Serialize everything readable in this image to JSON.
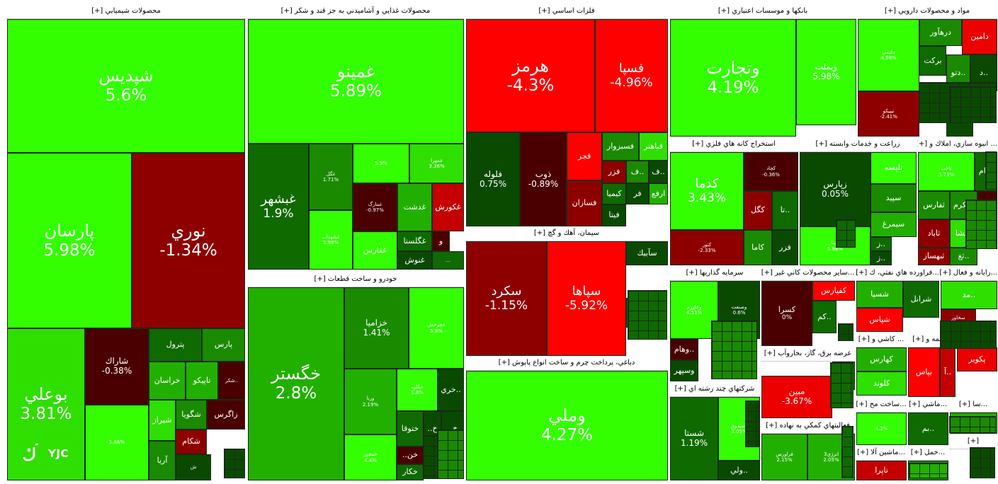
{
  "app": {
    "logo_text": "YJC",
    "background": "#ffffff"
  },
  "colors": {
    "g5": "#33ff00",
    "g4": "#2fdf00",
    "g3": "#22b000",
    "g2": "#1a8a00",
    "g1": "#0f6a00",
    "g0": "#0a4a00",
    "r5": "#ff0000",
    "r4": "#ec0000",
    "r3": "#c40000",
    "r2": "#8e0000",
    "r1": "#4a0000"
  },
  "sectors": [
    {
      "id": "chem",
      "label": "محصولات شيميايي [+]",
      "tiles": [
        {
          "n": "شپديس",
          "c": "5.6%",
          "col": "g5"
        },
        {
          "n": "پارسان",
          "c": "5.98%",
          "col": "g5"
        },
        {
          "n": "نوري",
          "c": "-1.34%",
          "col": "r2"
        },
        {
          "n": "بوعلي",
          "c": "3.81%",
          "col": "g4"
        },
        {
          "n": "شاراك",
          "c": "-0.38%",
          "col": "r1"
        },
        {
          "n": "",
          "c": "5.66%",
          "col": "g5"
        },
        {
          "n": "پترول",
          "c": "",
          "col": "g1"
        },
        {
          "n": "پارس",
          "c": "",
          "col": "g2"
        },
        {
          "n": "خراسان",
          "c": "",
          "col": "g3"
        },
        {
          "n": "تاپيكو",
          "c": "",
          "col": "g3"
        },
        {
          "n": "..شكر",
          "c": "",
          "col": "r1"
        },
        {
          "n": "شگويا",
          "c": "",
          "col": "g2"
        },
        {
          "n": "زاگرس",
          "c": "",
          "col": "r1"
        },
        {
          "n": "شيراز",
          "c": "",
          "col": "g4"
        },
        {
          "n": "شكام",
          "c": "",
          "col": "r2"
        },
        {
          "n": "آريا",
          "c": "",
          "col": "g2"
        },
        {
          "n": "ش",
          "c": "",
          "col": "g0"
        }
      ]
    },
    {
      "id": "food",
      "label": "محصولات غذايي و آشاميدني به جز قند و شكر [+]",
      "tiles": [
        {
          "n": "غمينو",
          "c": "5.89%",
          "col": "g5"
        },
        {
          "n": "غبشهر",
          "c": "1.9%",
          "col": "g1"
        },
        {
          "n": "غگل",
          "c": "1.71%",
          "col": "g2"
        },
        {
          "n": "",
          "c": "5.9%",
          "col": "g5"
        },
        {
          "n": "غمهرا",
          "c": "3.36%",
          "col": "g4"
        },
        {
          "n": "غشهداب",
          "c": "5.98%",
          "col": "g5"
        },
        {
          "n": "غمارگ",
          "c": "-0.97%",
          "col": "r1"
        },
        {
          "n": "غدشت",
          "c": "",
          "col": "g3"
        },
        {
          "n": "غكورش",
          "c": "",
          "col": "r3"
        },
        {
          "n": "غفارس",
          "c": "",
          "col": "g5"
        },
        {
          "n": "غگلستا",
          "c": "",
          "col": "g1"
        },
        {
          "n": "غنوش",
          "c": "",
          "col": "g0"
        },
        {
          "n": "و",
          "c": "",
          "col": "r1"
        },
        {
          "n": "...",
          "c": "",
          "col": "g1"
        }
      ]
    },
    {
      "id": "metal",
      "label": "فلزات اساسي [+]",
      "tiles": [
        {
          "n": "هرمز",
          "c": "-4.3%",
          "col": "r5"
        },
        {
          "n": "فسپا",
          "c": "-4.96%",
          "col": "r5"
        },
        {
          "n": "فلوله",
          "c": "0.75%",
          "col": "g0"
        },
        {
          "n": "ذوب",
          "c": "-0.89%",
          "col": "r1"
        },
        {
          "n": "فجر",
          "c": "",
          "col": "r5"
        },
        {
          "n": "فسازان",
          "c": "",
          "col": "r2"
        },
        {
          "n": "فسبزوار",
          "c": "",
          "col": "g2"
        },
        {
          "n": "فباهنر",
          "c": "",
          "col": "g4"
        },
        {
          "n": "فزر",
          "c": "",
          "col": "r2"
        },
        {
          "n": "..ف",
          "c": "",
          "col": "g2"
        },
        {
          "n": "..ف",
          "c": "",
          "col": "g0"
        },
        {
          "n": "كيميا",
          "c": "",
          "col": "g1"
        },
        {
          "n": "فر",
          "c": "",
          "col": "g0"
        },
        {
          "n": "ارفع",
          "c": "",
          "col": "g3"
        },
        {
          "n": "فيتا",
          "c": "",
          "col": "g0"
        }
      ]
    },
    {
      "id": "bank",
      "label": "بانكها و موسسات اعتباري [+]",
      "tiles": [
        {
          "n": "وتجارت",
          "c": "4.19%",
          "col": "g5"
        },
        {
          "n": "وبملت",
          "c": "5.98%",
          "col": "g5"
        }
      ]
    },
    {
      "id": "pharma",
      "label": "مواد و محصولات دارويي [+]",
      "tiles": [
        {
          "n": "دكيمي",
          "c": "4.59%",
          "col": "g5"
        },
        {
          "n": "درهآور",
          "c": "",
          "col": "g2"
        },
        {
          "n": "دامين",
          "c": "",
          "col": "r4"
        },
        {
          "n": "بركت",
          "c": "",
          "col": "g1"
        },
        {
          "n": "..دتو",
          "c": "",
          "col": "g2"
        },
        {
          "n": "..د",
          "c": "",
          "col": "g0"
        },
        {
          "n": "تيپيكو",
          "c": "-2.41%",
          "col": "r2"
        },
        {
          "n": "دلر",
          "c": "",
          "col": "g1"
        },
        {
          "n": "..دد",
          "c": "",
          "col": "g0"
        }
      ]
    },
    {
      "id": "cement",
      "label": "سيمان، آهك و گچ [+]",
      "tiles": [
        {
          "n": "سكرد",
          "c": "-1.15%",
          "col": "r2"
        },
        {
          "n": "سپاها",
          "c": "-5.92%",
          "col": "r5"
        },
        {
          "n": "سآبيك",
          "c": "",
          "col": "g0"
        },
        {
          "n": "..س",
          "c": "",
          "col": "g1"
        }
      ]
    },
    {
      "id": "leather",
      "label": "دباغي، پرداخت چرم و ساخت انواع پاپوش [+]",
      "tiles": [
        {
          "n": "وملي",
          "c": "4.27%",
          "col": "g5"
        }
      ]
    },
    {
      "id": "auto",
      "label": "خودرو و ساخت قطعات [+]",
      "tiles": [
        {
          "n": "خگستر",
          "c": "2.8%",
          "col": "g3"
        },
        {
          "n": "خزاميا",
          "c": "1.41%",
          "col": "g2"
        },
        {
          "n": "خچرخش",
          "c": "5.9%",
          "col": "g5"
        },
        {
          "n": "ورنا",
          "c": "2.19%",
          "col": "g3"
        },
        {
          "n": "خكاوه",
          "c": "5.8%",
          "col": "g5"
        },
        {
          "n": "..خري",
          "c": "",
          "col": "g0"
        },
        {
          "n": "ختوقا",
          "c": "",
          "col": "g1"
        },
        {
          "n": "خ..",
          "c": "",
          "col": "g0"
        },
        {
          "n": "خ..",
          "c": "",
          "col": "g0"
        },
        {
          "n": "خمحور",
          "c": "4.4%",
          "col": "g5"
        },
        {
          "n": "خن..",
          "c": "",
          "col": "r1"
        },
        {
          "n": "خ..",
          "c": "",
          "col": "r2"
        },
        {
          "n": "خكار",
          "c": "",
          "col": "g1"
        }
      ]
    },
    {
      "id": "mining",
      "label": "استخراج كانه هاي فلزي [+]",
      "tiles": [
        {
          "n": "كدما",
          "c": "3.43%",
          "col": "g5"
        },
        {
          "n": "كچاد",
          "c": "-0.36%",
          "col": "r1"
        },
        {
          "n": "كگل",
          "c": "",
          "col": "r2"
        },
        {
          "n": "..تا",
          "c": "",
          "col": "g1"
        },
        {
          "n": "كاما",
          "c": "",
          "col": "g2"
        },
        {
          "n": "فزر",
          "c": "",
          "col": "g0"
        },
        {
          "n": "كنور",
          "c": "-2.33%",
          "col": "r2"
        }
      ]
    },
    {
      "id": "agri",
      "label": "زراعت و خدمات وابسته [+]",
      "tiles": [
        {
          "n": "زپارس",
          "c": "0.05%",
          "col": "g0"
        },
        {
          "n": "تليسه",
          "c": "",
          "col": "g5"
        },
        {
          "n": "سپيد",
          "c": "",
          "col": "g2"
        },
        {
          "n": "سيمرغ",
          "c": "",
          "col": "g3"
        },
        {
          "n": "..ز",
          "c": "",
          "col": "g1"
        },
        {
          "n": "..ز",
          "c": "",
          "col": "g0"
        },
        {
          "n": "زبينا",
          "c": "5.98%",
          "col": "g5"
        }
      ]
    },
    {
      "id": "realestate",
      "label": "... انبوه سازي، املاك و [+]",
      "tiles": [
        {
          "n": "ثاخت",
          "c": "3.73%",
          "col": "g5"
        },
        {
          "n": "..ثام",
          "c": "",
          "col": "g1"
        },
        {
          "n": "ثفارس",
          "c": "",
          "col": "g2"
        },
        {
          "n": "..ثكرم",
          "c": "",
          "col": "g2"
        },
        {
          "n": "..و",
          "c": "",
          "col": "r1"
        },
        {
          "n": "..ثشا",
          "c": "",
          "col": "g4"
        },
        {
          "n": "ثباغ",
          "c": "",
          "col": "g1"
        },
        {
          "n": "ثاباد",
          "c": "",
          "col": "r2"
        },
        {
          "n": "..ثغ",
          "c": "",
          "col": "g2"
        },
        {
          "n": "ثبهساز",
          "c": "",
          "col": "r2"
        }
      ]
    },
    {
      "id": "invest",
      "label": "سرمايه گذاريها [+]",
      "tiles": [
        {
          "n": "وخارزم",
          "c": "4.51%",
          "col": "g5"
        },
        {
          "n": "وصنعت",
          "c": "0.6%",
          "col": "g0"
        },
        {
          "n": "..وهام",
          "c": "",
          "col": "r1"
        },
        {
          "n": "وسپهر",
          "c": "",
          "col": "g0"
        }
      ]
    },
    {
      "id": "nonmetal",
      "label": "...ساير محصولات كاني غير [+]",
      "tiles": [
        {
          "n": "كسرا",
          "c": "0%",
          "col": "r1"
        },
        {
          "n": "كفپارس",
          "c": "",
          "col": "r5"
        },
        {
          "n": "..كم",
          "c": "",
          "col": "g1"
        }
      ]
    },
    {
      "id": "oil",
      "label": "...فراورده هاي نفتي، ك [+]",
      "tiles": [
        {
          "n": "شسپا",
          "c": "",
          "col": "g3"
        },
        {
          "n": "شرانل",
          "c": "",
          "col": "g1"
        },
        {
          "n": "شپاس",
          "c": "",
          "col": "r5"
        }
      ]
    },
    {
      "id": "computer",
      "label": "...رايانه و فعال [+]",
      "tiles": [
        {
          "n": "..مد",
          "c": "",
          "col": "g4"
        },
        {
          "n": "سخاور",
          "c": "-2.73%",
          "col": "r2"
        }
      ]
    },
    {
      "id": "power",
      "label": "عرضه برق، گاز، بخاروآب [+]",
      "tiles": [
        {
          "n": "مبين",
          "c": "-3.67%",
          "col": "r4"
        },
        {
          "n": "..بپ",
          "c": "",
          "col": "g2"
        }
      ]
    },
    {
      "id": "tile",
      "label": "... كاشي و [+]",
      "tiles": [
        {
          "n": "كهارس",
          "c": "",
          "col": "g3"
        },
        {
          "n": "كلوند",
          "c": "",
          "col": "g4"
        }
      ]
    },
    {
      "id": "insurance",
      "label": "...بيمه و [+]",
      "tiles": [
        {
          "n": "بپاس",
          "c": "",
          "col": "r5"
        },
        {
          "n": "..آ",
          "c": "",
          "col": "r3"
        }
      ]
    },
    {
      "id": "rubber",
      "label": "...لاستيكي [+]",
      "tiles": [
        {
          "n": "پكوير",
          "c": "",
          "col": "r4"
        }
      ]
    },
    {
      "id": "multi",
      "label": "شركتهاي چند رشته اي [+]",
      "tiles": [
        {
          "n": "شستا",
          "c": "1.19%",
          "col": "g1"
        },
        {
          "n": "وصندوق",
          "c": "3.05%",
          "col": "g5"
        },
        {
          "n": "..ولي",
          "c": "",
          "col": "g0"
        }
      ]
    },
    {
      "id": "aux",
      "label": "فعاليتهاي كمكي به نهاده [+]",
      "tiles": [
        {
          "n": "فراورس",
          "c": "2.15%",
          "col": "g3"
        },
        {
          "n": "انرژي3",
          "c": "2.05%",
          "col": "g3"
        }
      ]
    },
    {
      "id": "other1",
      "label": "...ساخت مح [+]",
      "tiles": [
        {
          "n": "",
          "c": "4.2%",
          "col": "g5"
        }
      ]
    },
    {
      "id": "other2",
      "label": "...ماشي [+]",
      "tiles": [
        {
          "n": "..بم",
          "c": "",
          "col": "g1"
        }
      ]
    },
    {
      "id": "other3",
      "label": "...سا [+]",
      "tiles": [
        {
          "n": "",
          "c": "",
          "col": "g3"
        }
      ]
    },
    {
      "id": "machine",
      "label": "...ماشين آلا [+]",
      "tiles": [
        {
          "n": "تاپرا",
          "c": "",
          "col": "r3"
        }
      ]
    },
    {
      "id": "transport",
      "label": "...حمل [+]",
      "tiles": [
        {
          "n": "",
          "c": "",
          "col": "g2"
        }
      ]
    },
    {
      "id": "misc",
      "label": "[+]",
      "tiles": []
    }
  ]
}
